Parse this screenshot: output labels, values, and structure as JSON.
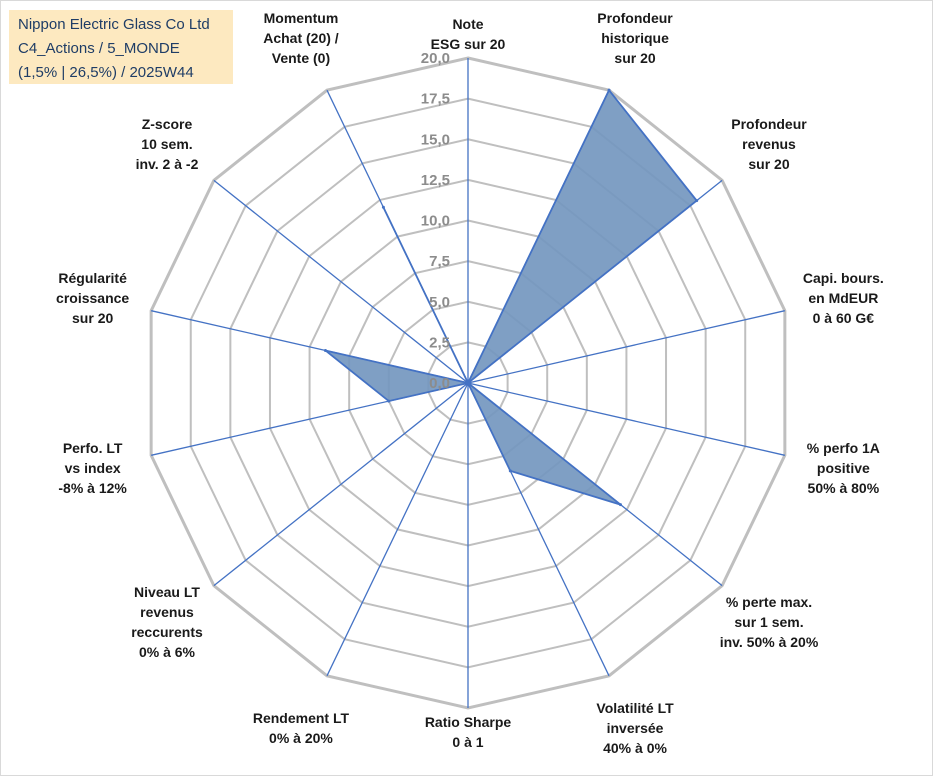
{
  "title_box": {
    "lines": [
      "Nippon Electric Glass Co Ltd",
      "C4_Actions / 5_MONDE",
      "(1,5% | 26,5%) / 2025W44"
    ]
  },
  "chart_data": {
    "type": "radar",
    "rmax": 20,
    "grid": true,
    "tick_values": [
      0,
      2.5,
      5,
      7.5,
      10,
      12.5,
      15,
      17.5,
      20
    ],
    "tick_labels": [
      "0,0",
      "2,5",
      "5,0",
      "7,5",
      "10,0",
      "12,5",
      "15,0",
      "17,5",
      "20,0"
    ],
    "axes": [
      [
        "Note",
        "ESG sur 20"
      ],
      [
        "Profondeur",
        "historique",
        "sur 20"
      ],
      [
        "Profondeur",
        "revenus",
        "sur 20"
      ],
      [
        "Capi. bours.",
        "en MdEUR",
        "0 à 60 G€"
      ],
      [
        "% perfo 1A",
        "positive",
        "50% à 80%"
      ],
      [
        "% perte max.",
        "sur 1 sem.",
        "inv. 50% à 20%"
      ],
      [
        "Volatilité LT",
        "inversée",
        "40% à 0%"
      ],
      [
        "Ratio Sharpe",
        "0 à 1"
      ],
      [
        "Rendement LT",
        "0% à 20%"
      ],
      [
        "Niveau LT",
        "revenus",
        "reccurents",
        "0% à 6%"
      ],
      [
        "Perfo. LT",
        "vs index",
        "-8% à 12%"
      ],
      [
        "Régularité",
        "croissance",
        "sur 20"
      ],
      [
        "Z-score",
        "10 sem.",
        "inv. 2 à -2"
      ],
      [
        "Momentum",
        "Achat (20) /",
        "Vente (0)"
      ]
    ],
    "series": [
      {
        "values": [
          0,
          20,
          18,
          0,
          0,
          12,
          6,
          0,
          0,
          0,
          5,
          9,
          0,
          12
        ],
        "fill": "#7497bf",
        "stroke": "#4472c4"
      }
    ],
    "colors": {
      "grid": "#bfbfbf",
      "spoke": "#4472c4",
      "title_bg": "#fde9c0",
      "title_text": "#1f3d66"
    }
  }
}
